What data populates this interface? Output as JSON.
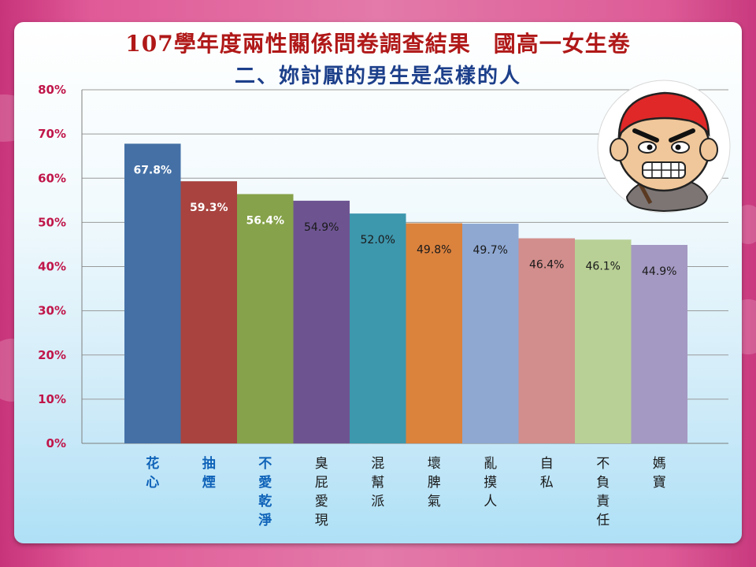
{
  "slide": {
    "title": "107學年度兩性關係問卷調查結果　國高一女生卷",
    "subtitle": "二、妳討厭的男生是怎樣的人"
  },
  "illustration": {
    "name": "angry-boy-face"
  },
  "colors": {
    "title": "#b01818",
    "subtitle": "#1c3f8a",
    "ytick": "#c0164a",
    "gridline": "#9a9a9a"
  },
  "chart_data": {
    "type": "bar",
    "title": "",
    "xlabel": "",
    "ylabel": "",
    "ylim": [
      0,
      80
    ],
    "ytick_step": 10,
    "ytick_labels": [
      "0%",
      "10%",
      "20%",
      "30%",
      "40%",
      "50%",
      "60%",
      "70%",
      "80%"
    ],
    "grid": true,
    "legend": "none",
    "categories": [
      "花心",
      "抽煙",
      "不愛乾淨",
      "臭屁愛現",
      "混幫派",
      "壞脾氣",
      "亂摸人",
      "自私",
      "不負責任",
      "媽寶"
    ],
    "values": [
      67.8,
      59.3,
      56.4,
      54.9,
      52.0,
      49.8,
      49.7,
      46.4,
      46.1,
      44.9
    ],
    "value_labels": [
      "67.8%",
      "59.3%",
      "56.4%",
      "54.9%",
      "52.0%",
      "49.8%",
      "49.7%",
      "46.4%",
      "46.1%",
      "44.9%"
    ],
    "bar_colors": [
      "#4470a6",
      "#a8433f",
      "#86a24a",
      "#6d5491",
      "#3d97ad",
      "#db823d",
      "#8ea8d2",
      "#d28e8c",
      "#b8d095",
      "#a499c2"
    ],
    "label_colors": [
      "#ffffff",
      "#ffffff",
      "#ffffff",
      "#1a1a1a",
      "#1a1a1a",
      "#1a1a1a",
      "#1a1a1a",
      "#1a1a1a",
      "#1a1a1a",
      "#1a1a1a"
    ],
    "category_colors": [
      "#0e62b8",
      "#0e62b8",
      "#0e62b8",
      "#1a1a1a",
      "#1a1a1a",
      "#1a1a1a",
      "#1a1a1a",
      "#1a1a1a",
      "#1a1a1a",
      "#1a1a1a"
    ]
  }
}
